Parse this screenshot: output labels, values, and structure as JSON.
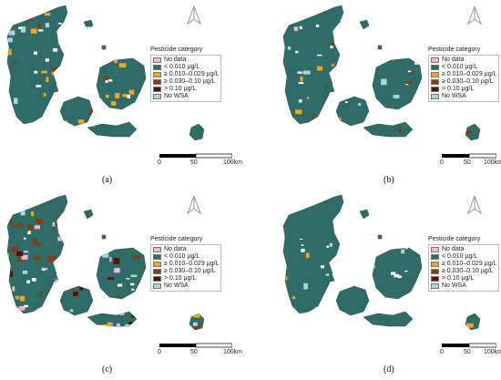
{
  "legend": {
    "title": "Pesticide category",
    "items": [
      {
        "label": "No data",
        "color": "#f4b6cf"
      },
      {
        "label": "< 0.010 µg/L",
        "color": "#2f6b67"
      },
      {
        "label": "≥ 0.010–0.029 µg/L",
        "color": "#f2a61e"
      },
      {
        "label": "≥ 0.030–0.10 µg/L",
        "color": "#8a3b0e"
      },
      {
        "label": "> 0.10 µg/L",
        "color": "#5a0f0a"
      },
      {
        "label": "No WSA",
        "color": "#a9d4e6"
      }
    ]
  },
  "scale": {
    "ticks": [
      "0",
      "50",
      "100km"
    ]
  },
  "panels": [
    {
      "label": "(a)"
    },
    {
      "label": "(b)"
    },
    {
      "label": "(c)"
    },
    {
      "label": "(d)"
    }
  ],
  "colors": {
    "background": "#ffffff",
    "base": "#2f6b67",
    "no_wsa": "#a9d4e6",
    "no_data": "#f4b6cf",
    "low": "#f2a61e",
    "mid": "#8a3b0e",
    "high": "#5a0f0a"
  }
}
